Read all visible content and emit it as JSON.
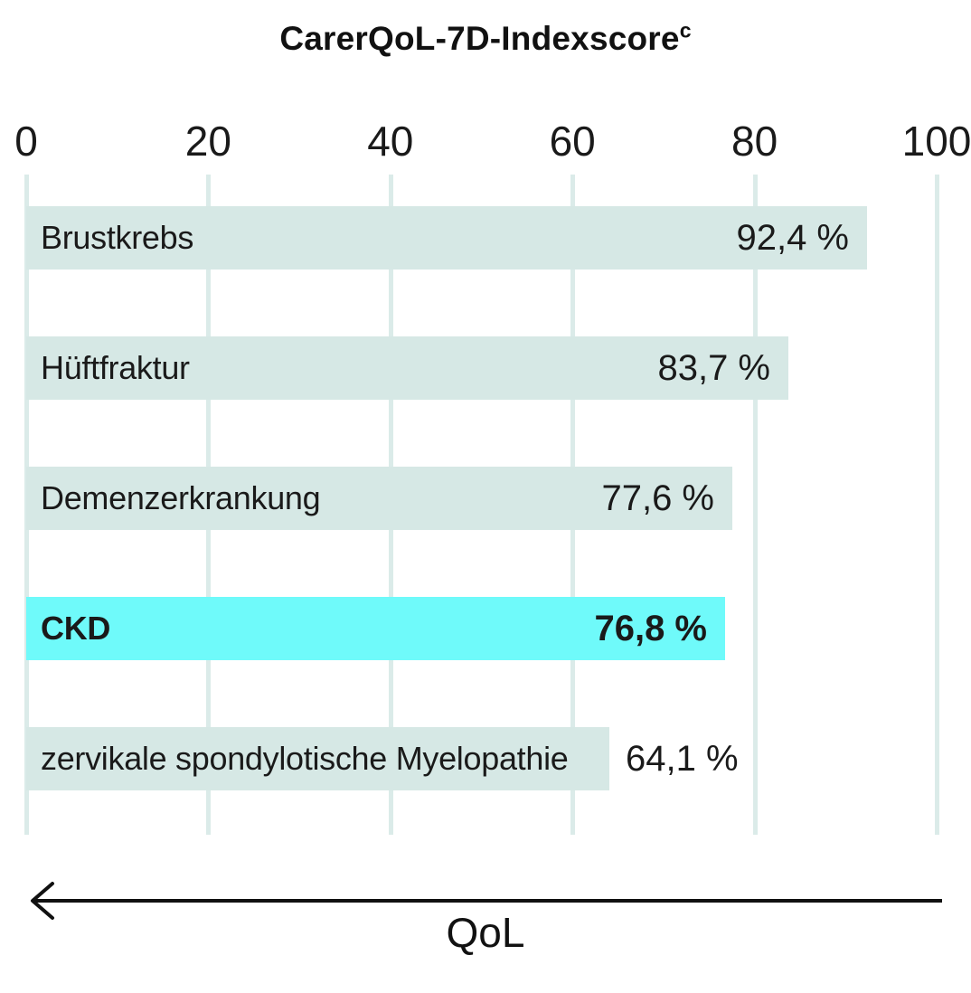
{
  "title": {
    "text": "CarerQoL-7D-Indexscore",
    "superscript": "c"
  },
  "x_axis": {
    "min": 0,
    "max": 100,
    "ticks": [
      {
        "label": "0",
        "value": 0
      },
      {
        "label": "20",
        "value": 20
      },
      {
        "label": "40",
        "value": 40
      },
      {
        "label": "60",
        "value": 60
      },
      {
        "label": "80",
        "value": 80
      },
      {
        "label": "100",
        "value": 100
      }
    ]
  },
  "qol_axis": {
    "label": "QoL",
    "arrow_direction": "left"
  },
  "colors": {
    "bar_default": "#d6e8e5",
    "bar_highlight": "#6ffafa",
    "gridline": "#dbebe9",
    "text": "#1a1a1a"
  },
  "chart_data": {
    "type": "bar",
    "orientation": "horizontal",
    "title": "CarerQoL-7D-Indexscore (superscript c)",
    "xlabel": "QoL",
    "xlim": [
      0,
      100
    ],
    "grid": true,
    "legend": false,
    "categories": [
      "Brustkrebs",
      "Hüftfraktur",
      "Demenzerkrankung",
      "CKD",
      "zervikale spondylotische Myelopathie"
    ],
    "values": [
      92.4,
      83.7,
      77.6,
      76.8,
      64.1
    ],
    "bars": [
      {
        "label": "Brustkrebs",
        "value": 92.4,
        "value_label": "92,4 %",
        "highlighted": false,
        "value_position": "inside"
      },
      {
        "label": "Hüftfraktur",
        "value": 83.7,
        "value_label": "83,7 %",
        "highlighted": false,
        "value_position": "inside"
      },
      {
        "label": "Demenzerkrankung",
        "value": 77.6,
        "value_label": "77,6 %",
        "highlighted": false,
        "value_position": "inside"
      },
      {
        "label": "CKD",
        "value": 76.8,
        "value_label": "76,8 %",
        "highlighted": true,
        "value_position": "inside"
      },
      {
        "label": "zervikale spondylotische Myelopathie",
        "value": 64.1,
        "value_label": "64,1 %",
        "highlighted": false,
        "value_position": "outside"
      }
    ],
    "highlighted_category": "CKD"
  }
}
